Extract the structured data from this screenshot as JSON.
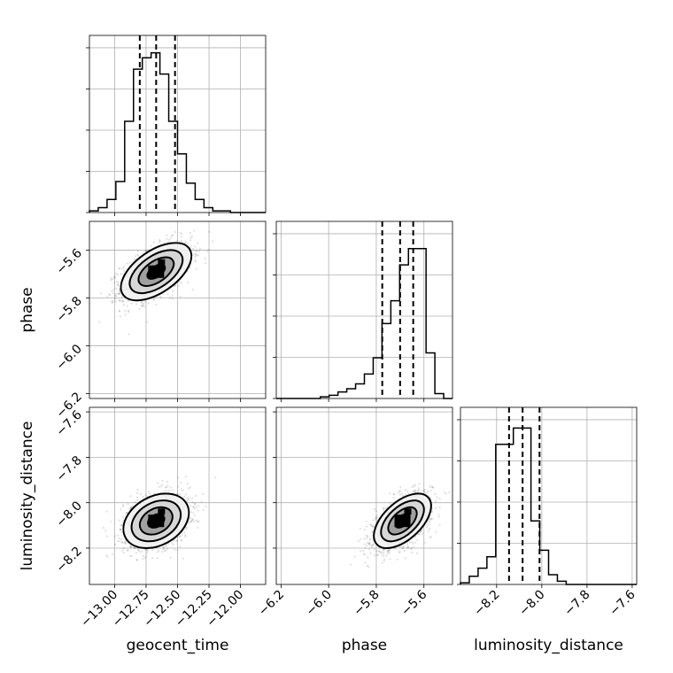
{
  "chart_data": {
    "type": "corner",
    "parameters": [
      {
        "key": "geocent_time",
        "label": "geocent_time",
        "range": [
          -13.2,
          -11.8
        ],
        "ticks": [
          -13.0,
          -12.75,
          -12.5,
          -12.25,
          -12.0
        ],
        "tick_labels": [
          "−13.00",
          "−12.75",
          "−12.50",
          "−12.25",
          "−12.00"
        ],
        "quantiles": [
          -12.8,
          -12.67,
          -12.52
        ]
      },
      {
        "key": "phase",
        "label": "phase",
        "range": [
          -6.22,
          -5.48
        ],
        "ticks": [
          -6.2,
          -6.0,
          -5.8,
          -5.6
        ],
        "tick_labels": [
          "−6.2",
          "−6.0",
          "−5.8",
          "−5.6"
        ],
        "quantiles": [
          -5.775,
          -5.7,
          -5.645
        ]
      },
      {
        "key": "luminosity_distance",
        "label": "luminosity_distance",
        "range": [
          -8.36,
          -7.58
        ],
        "ticks": [
          -8.2,
          -8.0,
          -7.8,
          -7.6
        ],
        "tick_labels": [
          "−8.2",
          "−8.0",
          "−7.8",
          "−7.6"
        ],
        "quantiles": [
          -8.145,
          -8.085,
          -8.01
        ]
      }
    ],
    "histograms": [
      {
        "param": "geocent_time",
        "edges_start": -13.2,
        "bin_width": 0.07,
        "counts": [
          0.01,
          0.03,
          0.08,
          0.19,
          0.56,
          0.88,
          0.95,
          0.98,
          0.85,
          0.56,
          0.36,
          0.18,
          0.08,
          0.03,
          0.01,
          0.01,
          0.0,
          0.0,
          0.0,
          0.0
        ]
      },
      {
        "param": "phase",
        "edges_start": -6.22,
        "bin_width": 0.037,
        "counts": [
          0.0,
          0.0,
          0.0,
          0.0,
          0.0,
          0.01,
          0.02,
          0.04,
          0.06,
          0.09,
          0.15,
          0.25,
          0.46,
          0.6,
          0.82,
          0.92,
          0.92,
          0.28,
          0.03,
          0.0
        ]
      },
      {
        "param": "luminosity_distance",
        "edges_start": -8.36,
        "bin_width": 0.039,
        "counts": [
          0.01,
          0.05,
          0.1,
          0.17,
          0.86,
          0.86,
          0.96,
          0.96,
          0.39,
          0.21,
          0.06,
          0.02,
          0.0,
          0.0,
          0.0,
          0.0,
          0.0,
          0.0,
          0.0,
          0.0
        ]
      }
    ],
    "scatter_panels": [
      {
        "x": "geocent_time",
        "y": "phase",
        "center": [
          -12.67,
          -5.69
        ],
        "spread": [
          0.14,
          0.06
        ],
        "correlation": 0.55,
        "n_points": 1500
      },
      {
        "x": "geocent_time",
        "y": "luminosity_distance",
        "center": [
          -12.67,
          -8.08
        ],
        "spread": [
          0.13,
          0.06
        ],
        "correlation": 0.3,
        "n_points": 1500
      },
      {
        "x": "phase",
        "y": "luminosity_distance",
        "center": [
          -5.69,
          -8.08
        ],
        "spread": [
          0.06,
          0.06
        ],
        "correlation": 0.55,
        "n_points": 1500
      }
    ],
    "contour_levels_sigma": [
      0.5,
      1.0,
      1.5,
      2.0
    ],
    "grid": true
  }
}
